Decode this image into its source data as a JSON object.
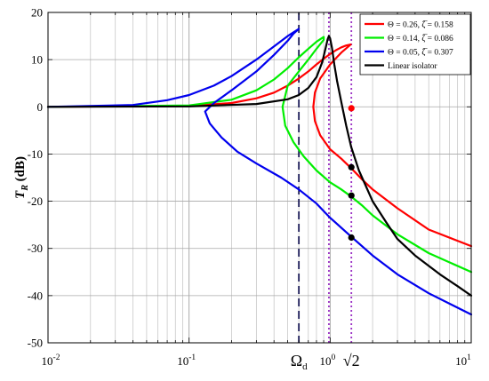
{
  "chart_data": {
    "type": "line",
    "x_scale": "log",
    "xlim": [
      0.01,
      10
    ],
    "ylim": [
      -50,
      20
    ],
    "x_ticks": [
      {
        "value": 0.01,
        "label": "10",
        "exp": "-2"
      },
      {
        "value": 0.1,
        "label": "10",
        "exp": "-1"
      },
      {
        "value": 1,
        "label": "10",
        "exp": "0"
      },
      {
        "value": 10,
        "label": "10",
        "exp": "1"
      }
    ],
    "y_ticks": [
      20,
      10,
      0,
      -10,
      -20,
      -30,
      -40,
      -50
    ],
    "y_tick_labels": [
      "20",
      "10",
      "0",
      "-10",
      "-20",
      "-30",
      "-40",
      "-50"
    ],
    "ylabel": {
      "main": "T",
      "sub": "R",
      "unit": " (dB)"
    },
    "special_labels": [
      {
        "x": 0.6,
        "main": "Ω",
        "sub": "d"
      },
      {
        "x": 1.414,
        "text": "√2"
      }
    ],
    "vlines": [
      {
        "x": 0.6,
        "style": "dashed",
        "color": "#1f1f5a"
      },
      {
        "x": 0.98,
        "style": "dotted",
        "color": "#9b2fc4"
      },
      {
        "x": 1.414,
        "style": "dotted",
        "color": "#9b2fc4"
      }
    ],
    "grid": true,
    "legend_position": "top-right",
    "series": [
      {
        "name": "Θ = 0.26, ζ̅ = 0.158",
        "color": "#ff0000",
        "x": [
          0.01,
          0.1,
          0.2,
          0.3,
          0.4,
          0.5,
          0.6,
          0.7,
          0.8,
          0.9,
          1.0,
          1.1,
          1.2,
          1.3,
          1.4,
          1.2,
          1.0,
          0.85,
          0.78,
          0.76,
          0.78,
          0.85,
          1.0,
          1.2,
          1.41,
          1.7,
          2.0,
          3.0,
          5.0,
          10.0
        ],
        "y": [
          0,
          0.2,
          0.8,
          1.8,
          3.0,
          4.5,
          6.0,
          7.5,
          9.0,
          10.2,
          11.2,
          12.0,
          12.6,
          13.0,
          13.2,
          11.5,
          9.0,
          6.0,
          3.0,
          0,
          -3.0,
          -6.0,
          -9.0,
          -11.0,
          -13.0,
          -15.5,
          -17.5,
          -21.5,
          -26.0,
          -29.5
        ]
      },
      {
        "name": "Θ = 0.14, ζ̅ = 0.086",
        "color": "#00ee00",
        "x": [
          0.01,
          0.1,
          0.2,
          0.3,
          0.4,
          0.5,
          0.6,
          0.7,
          0.8,
          0.9,
          0.9,
          0.8,
          0.7,
          0.6,
          0.5,
          0.46,
          0.48,
          0.55,
          0.65,
          0.8,
          1.0,
          1.2,
          1.41,
          1.7,
          2.0,
          3.0,
          5.0,
          10.0
        ],
        "y": [
          0,
          0.3,
          1.5,
          3.5,
          5.8,
          8.2,
          10.5,
          12.3,
          13.8,
          14.8,
          14.2,
          12.3,
          10.0,
          7.5,
          4.5,
          0,
          -4.0,
          -7.5,
          -10.5,
          -13.5,
          -16.0,
          -17.5,
          -19.0,
          -21.0,
          -23.0,
          -27.0,
          -31.0,
          -35.0
        ]
      },
      {
        "name": "Θ = 0.05, ζ̅ = 0.307",
        "color": "#0000ee",
        "x": [
          0.01,
          0.04,
          0.07,
          0.1,
          0.15,
          0.2,
          0.3,
          0.4,
          0.5,
          0.6,
          0.55,
          0.5,
          0.4,
          0.3,
          0.2,
          0.15,
          0.13,
          0.14,
          0.17,
          0.22,
          0.3,
          0.45,
          0.6,
          0.8,
          1.0,
          1.41,
          2.0,
          3.0,
          5.0,
          10.0
        ],
        "y": [
          0,
          0.4,
          1.4,
          2.5,
          4.5,
          6.5,
          10.0,
          12.8,
          15.0,
          16.5,
          15.5,
          14.0,
          11.0,
          7.5,
          3.5,
          0.8,
          -1.0,
          -3.5,
          -6.5,
          -9.5,
          -12.0,
          -15.0,
          -17.5,
          -20.5,
          -23.5,
          -27.5,
          -31.5,
          -35.5,
          -39.5,
          -44.0
        ]
      },
      {
        "name": "Linear isolator",
        "color": "#000000",
        "x": [
          0.01,
          0.1,
          0.3,
          0.5,
          0.6,
          0.7,
          0.8,
          0.88,
          0.93,
          0.96,
          0.98,
          1.0,
          1.03,
          1.07,
          1.12,
          1.2,
          1.3,
          1.41,
          1.6,
          2.0,
          2.5,
          3.0,
          4.0,
          6.0,
          8.0,
          10.0
        ],
        "y": [
          0,
          0.1,
          0.6,
          1.6,
          2.5,
          4.0,
          6.3,
          9.5,
          12.5,
          14.3,
          15.0,
          14.5,
          12.5,
          9.0,
          5.5,
          1.0,
          -4.0,
          -8.5,
          -13.5,
          -20.0,
          -24.5,
          -28.0,
          -31.5,
          -35.5,
          -38.0,
          -40.0
        ]
      }
    ],
    "markers": [
      {
        "x": 1.414,
        "y": -0.3,
        "color": "#ff0000"
      },
      {
        "x": 1.414,
        "y": -12.8,
        "color": "#000000"
      },
      {
        "x": 1.414,
        "y": -18.8,
        "color": "#000000"
      },
      {
        "x": 1.414,
        "y": -27.7,
        "color": "#000000"
      }
    ]
  }
}
